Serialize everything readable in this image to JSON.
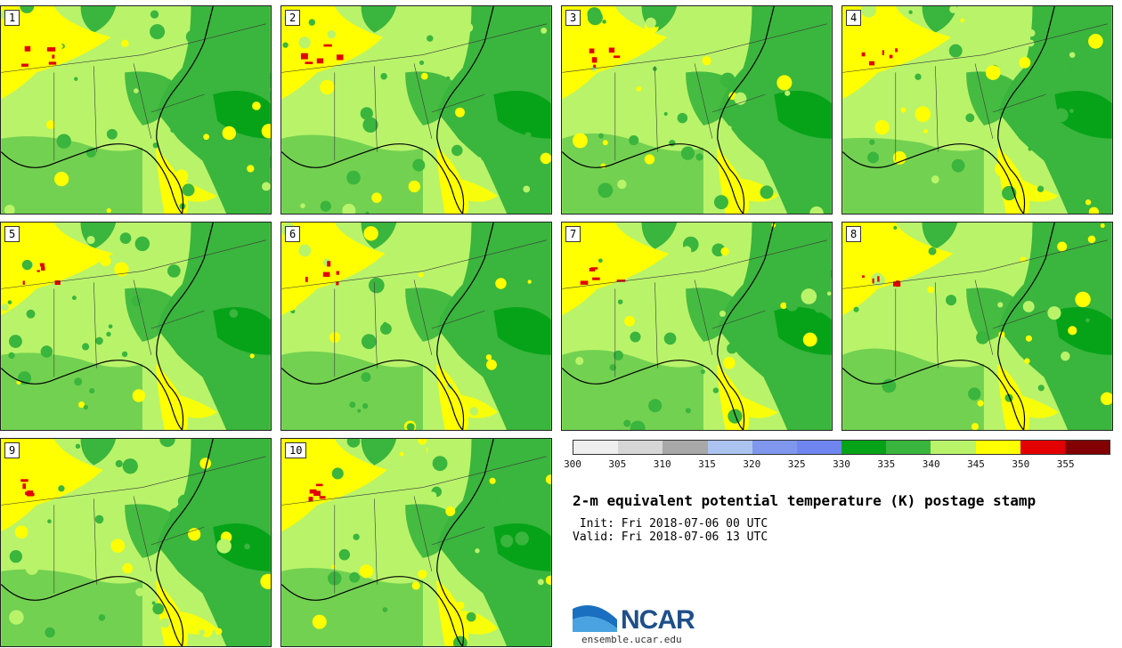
{
  "panels": [
    {
      "label": "1"
    },
    {
      "label": "2"
    },
    {
      "label": "3"
    },
    {
      "label": "4"
    },
    {
      "label": "5"
    },
    {
      "label": "6"
    },
    {
      "label": "7"
    },
    {
      "label": "8"
    },
    {
      "label": "9"
    },
    {
      "label": "10"
    }
  ],
  "colorbar": {
    "colors": [
      "#efefef",
      "#d6d6d6",
      "#a8a8a8",
      "#adc3ef",
      "#7f97ec",
      "#6f86f0",
      "#06a319",
      "#3ab53d",
      "#b9f36a",
      "#ffff00",
      "#e30000",
      "#820000"
    ],
    "ticks": [
      "300",
      "305",
      "310",
      "315",
      "320",
      "325",
      "330",
      "335",
      "340",
      "345",
      "350",
      "355"
    ]
  },
  "title": "2-m equivalent potential temperature (K) postage stamp",
  "init": " Init: Fri 2018-07-06 00 UTC",
  "valid": "Valid: Fri 2018-07-06 13 UTC",
  "logo": {
    "text": "NCAR",
    "site": "ensemble.ucar.edu"
  }
}
